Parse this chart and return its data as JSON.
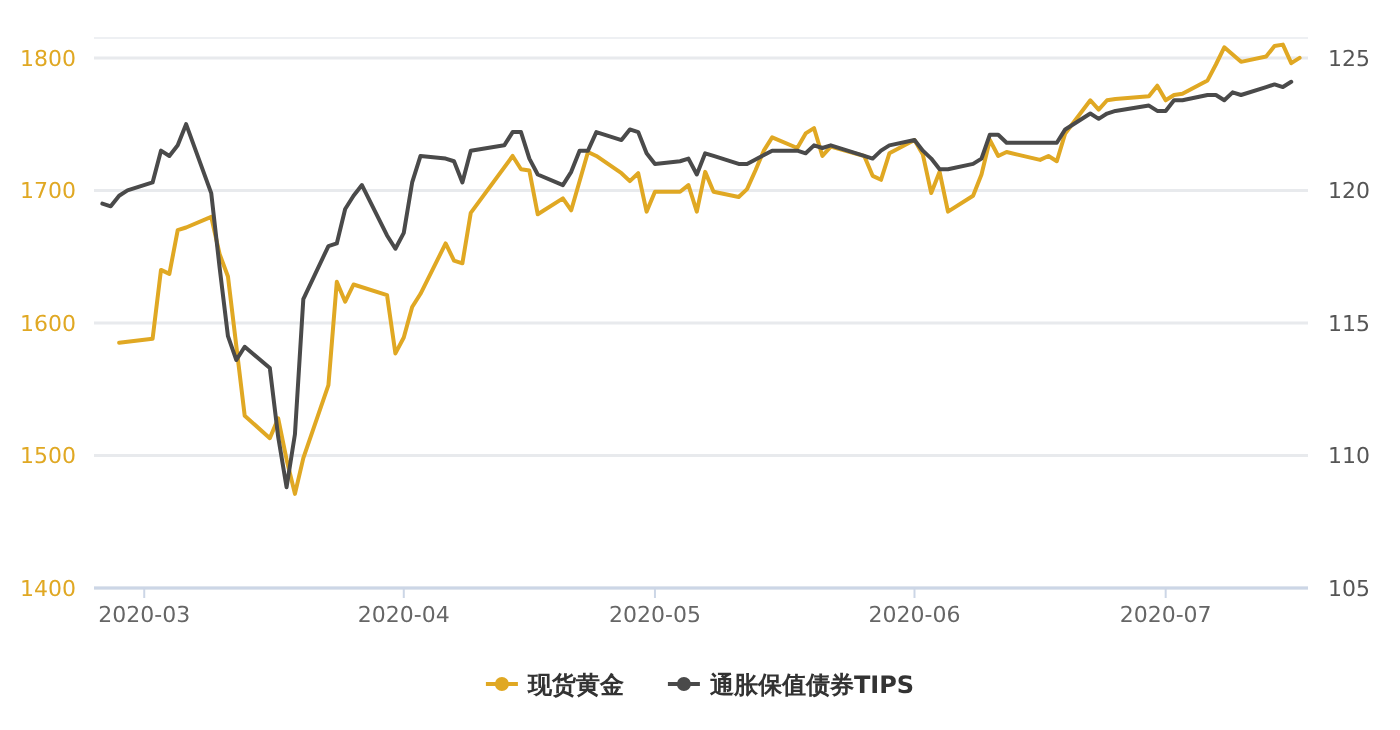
{
  "chart_data": {
    "type": "line",
    "grid": "y",
    "legend": "bottom",
    "xlim": [
      "2020-02-24",
      "2020-07-18"
    ],
    "xticks": [
      "2020-03",
      "2020-04",
      "2020-05",
      "2020-06",
      "2020-07"
    ],
    "ylim": [
      1400,
      1815
    ],
    "yticks": [
      1400,
      1500,
      1600,
      1700,
      1800
    ],
    "y2lim": [
      105,
      125.75
    ],
    "y2ticks": [
      105,
      110,
      115,
      120,
      125
    ],
    "series": [
      {
        "name": "现货黄金",
        "color": "#e0a823",
        "x": [
          "2020-02-27",
          "2020-03-02",
          "2020-03-03",
          "2020-03-04",
          "2020-03-05",
          "2020-03-06",
          "2020-03-09",
          "2020-03-10",
          "2020-03-11",
          "2020-03-13",
          "2020-03-16",
          "2020-03-17",
          "2020-03-18",
          "2020-03-19",
          "2020-03-20",
          "2020-03-23",
          "2020-03-24",
          "2020-03-25",
          "2020-03-26",
          "2020-03-30",
          "2020-03-31",
          "2020-04-01",
          "2020-04-02",
          "2020-04-03",
          "2020-04-06",
          "2020-04-07",
          "2020-04-08",
          "2020-04-09",
          "2020-04-14",
          "2020-04-15",
          "2020-04-16",
          "2020-04-17",
          "2020-04-20",
          "2020-04-21",
          "2020-04-23",
          "2020-04-24",
          "2020-04-27",
          "2020-04-28",
          "2020-04-29",
          "2020-04-30",
          "2020-05-01",
          "2020-05-04",
          "2020-05-05",
          "2020-05-06",
          "2020-05-07",
          "2020-05-08",
          "2020-05-11",
          "2020-05-12",
          "2020-05-13",
          "2020-05-14",
          "2020-05-15",
          "2020-05-18",
          "2020-05-19",
          "2020-05-20",
          "2020-05-21",
          "2020-05-22",
          "2020-05-26",
          "2020-05-27",
          "2020-05-28",
          "2020-05-29",
          "2020-06-01",
          "2020-06-02",
          "2020-06-03",
          "2020-06-04",
          "2020-06-05",
          "2020-06-08",
          "2020-06-09",
          "2020-06-10",
          "2020-06-11",
          "2020-06-12",
          "2020-06-16",
          "2020-06-17",
          "2020-06-18",
          "2020-06-19",
          "2020-06-22",
          "2020-06-23",
          "2020-06-24",
          "2020-06-25",
          "2020-06-29",
          "2020-06-30",
          "2020-07-01",
          "2020-07-02",
          "2020-07-03",
          "2020-07-06",
          "2020-07-07",
          "2020-07-08",
          "2020-07-10",
          "2020-07-13",
          "2020-07-14",
          "2020-07-15",
          "2020-07-16",
          "2020-07-17"
        ],
        "values": [
          1585,
          1588,
          1640,
          1637,
          1670,
          1672,
          1680,
          1652,
          1635,
          1530,
          1513,
          1528,
          1497,
          1471,
          1498,
          1553,
          1631,
          1616,
          1629,
          1621,
          1577,
          1589,
          1612,
          1622,
          1660,
          1647,
          1645,
          1683,
          1726,
          1716,
          1715,
          1682,
          1694,
          1685,
          1729,
          1726,
          1713,
          1707,
          1713,
          1684,
          1699,
          1699,
          1704,
          1684,
          1714,
          1699,
          1695,
          1701,
          1715,
          1730,
          1740,
          1732,
          1743,
          1747,
          1726,
          1733,
          1726,
          1711,
          1708,
          1728,
          1738,
          1727,
          1698,
          1714,
          1684,
          1696,
          1712,
          1738,
          1726,
          1729,
          1723,
          1726,
          1722,
          1743,
          1768,
          1761,
          1768,
          1769,
          1771,
          1779,
          1768,
          1772,
          1773,
          1783,
          1795,
          1808,
          1797,
          1801,
          1809,
          1810,
          1796,
          1800
        ]
      },
      {
        "name": "通胀保值债券TIPS",
        "color": "#4a4a4a",
        "axis": "y2",
        "x": [
          "2020-02-25",
          "2020-02-26",
          "2020-02-27",
          "2020-02-28",
          "2020-03-02",
          "2020-03-03",
          "2020-03-04",
          "2020-03-05",
          "2020-03-06",
          "2020-03-09",
          "2020-03-10",
          "2020-03-11",
          "2020-03-12",
          "2020-03-13",
          "2020-03-16",
          "2020-03-17",
          "2020-03-18",
          "2020-03-19",
          "2020-03-20",
          "2020-03-23",
          "2020-03-24",
          "2020-03-25",
          "2020-03-26",
          "2020-03-27",
          "2020-03-30",
          "2020-03-31",
          "2020-04-01",
          "2020-04-02",
          "2020-04-03",
          "2020-04-06",
          "2020-04-07",
          "2020-04-08",
          "2020-04-09",
          "2020-04-13",
          "2020-04-14",
          "2020-04-15",
          "2020-04-16",
          "2020-04-17",
          "2020-04-20",
          "2020-04-21",
          "2020-04-22",
          "2020-04-23",
          "2020-04-24",
          "2020-04-27",
          "2020-04-28",
          "2020-04-29",
          "2020-04-30",
          "2020-05-01",
          "2020-05-04",
          "2020-05-05",
          "2020-05-06",
          "2020-05-07",
          "2020-05-08",
          "2020-05-11",
          "2020-05-12",
          "2020-05-15",
          "2020-05-18",
          "2020-05-19",
          "2020-05-20",
          "2020-05-21",
          "2020-05-22",
          "2020-05-26",
          "2020-05-27",
          "2020-05-28",
          "2020-05-29",
          "2020-06-01",
          "2020-06-02",
          "2020-06-03",
          "2020-06-04",
          "2020-06-05",
          "2020-06-08",
          "2020-06-09",
          "2020-06-10",
          "2020-06-11",
          "2020-06-12",
          "2020-06-15",
          "2020-06-17",
          "2020-06-18",
          "2020-06-19",
          "2020-06-22",
          "2020-06-23",
          "2020-06-24",
          "2020-06-25",
          "2020-06-29",
          "2020-06-30",
          "2020-07-01",
          "2020-07-02",
          "2020-07-03",
          "2020-07-06",
          "2020-07-07",
          "2020-07-08",
          "2020-07-09",
          "2020-07-10",
          "2020-07-13",
          "2020-07-14",
          "2020-07-15",
          "2020-07-16"
        ],
        "values": [
          119.5,
          119.4,
          119.8,
          120.0,
          120.3,
          121.5,
          121.3,
          121.7,
          122.5,
          119.9,
          117.1,
          114.5,
          113.6,
          114.1,
          113.3,
          110.7,
          108.8,
          110.8,
          115.9,
          117.9,
          118.0,
          119.3,
          119.8,
          120.2,
          118.3,
          117.8,
          118.4,
          120.3,
          121.3,
          121.2,
          121.1,
          120.3,
          121.5,
          121.7,
          122.2,
          122.2,
          121.2,
          120.6,
          120.2,
          120.7,
          121.5,
          121.5,
          122.2,
          121.9,
          122.3,
          122.2,
          121.4,
          121.0,
          121.1,
          121.2,
          120.6,
          121.4,
          121.3,
          121.0,
          121.0,
          121.5,
          121.5,
          121.4,
          121.7,
          121.6,
          121.7,
          121.3,
          121.2,
          121.5,
          121.7,
          121.9,
          121.5,
          121.2,
          120.8,
          120.8,
          121.0,
          121.2,
          122.1,
          122.1,
          121.8,
          121.8,
          121.8,
          121.8,
          122.3,
          122.9,
          122.7,
          122.9,
          123.0,
          123.2,
          123.0,
          123.0,
          123.4,
          123.4,
          123.6,
          123.6,
          123.4,
          123.7,
          123.6,
          123.9,
          124.0,
          123.9,
          124.1
        ]
      }
    ]
  }
}
